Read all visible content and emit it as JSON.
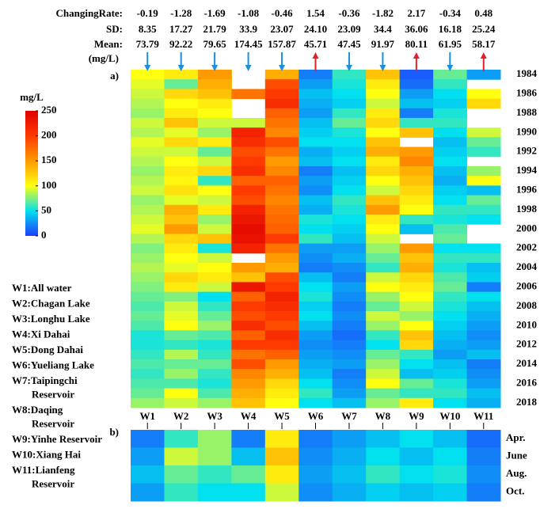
{
  "stats": {
    "rows": [
      {
        "label": "ChangingRate:",
        "values": [
          "-0.19",
          "-1.28",
          "-1.69",
          "-1.08",
          "-0.46",
          "1.54",
          "-0.36",
          "-1.82",
          "2.17",
          "-0.34",
          "0.48"
        ]
      },
      {
        "label": "SD:",
        "values": [
          "8.35",
          "17.27",
          "21.79",
          "33.9",
          "23.07",
          "24.10",
          "23.09",
          "34.4",
          "36.06",
          "16.18",
          "25.24"
        ]
      },
      {
        "label": "Mean:",
        "values": [
          "73.79",
          "92.22",
          "79.65",
          "174.45",
          "157.87",
          "45.71",
          "47.45",
          "91.97",
          "80.11",
          "61.95",
          "58.17"
        ]
      }
    ],
    "unit": "(mg/L)"
  },
  "colorbar": {
    "title": "mg/L",
    "lim": [
      0,
      250
    ],
    "ticks": [
      0,
      50,
      100,
      150,
      200,
      250
    ],
    "colormap": [
      "#1f3cff",
      "#00e0ee",
      "#ffff10",
      "#ff9a00",
      "#ff3a00",
      "#e00000"
    ]
  },
  "legend": [
    [
      "W1:All water"
    ],
    [
      "W2:Chagan Lake"
    ],
    [
      "W3:Longhu Lake"
    ],
    [
      "W4:Xi Dahai"
    ],
    [
      "W5:Dong Dahai"
    ],
    [
      "W6:Yueliang Lake"
    ],
    [
      "W7:Taipingchi",
      "Reservoir"
    ],
    [
      "W8:Daqing",
      "Reservoir"
    ],
    [
      "W9:Yinhe Reservoir"
    ],
    [
      "W10:Xiang Hai"
    ],
    [
      "W11:Lianfeng",
      "Reservoir"
    ]
  ],
  "chart_data": [
    {
      "type": "heatmap",
      "panel_label": "a)",
      "rows": [
        "1984",
        null,
        "1986",
        null,
        "1988",
        null,
        "1990",
        null,
        "1992",
        null,
        "1994",
        null,
        "1996",
        null,
        "1998",
        null,
        "2000",
        null,
        "2002",
        null,
        "2004",
        null,
        "2006",
        null,
        "2008",
        null,
        "2010",
        null,
        "2012",
        null,
        "2014",
        null,
        "2016",
        null,
        "2018"
      ],
      "series": [
        {
          "name": "W1",
          "values": [
            100,
            95,
            90,
            85,
            80,
            90,
            85,
            95,
            90,
            85,
            80,
            85,
            90,
            80,
            85,
            90,
            95,
            85,
            75,
            80,
            85,
            80,
            75,
            70,
            65,
            70,
            65,
            55,
            55,
            60,
            65,
            60,
            65,
            70,
            80
          ]
        },
        {
          "name": "W2",
          "values": [
            110,
            70,
            120,
            100,
            110,
            130,
            95,
            120,
            90,
            100,
            110,
            105,
            115,
            95,
            140,
            130,
            150,
            120,
            110,
            100,
            95,
            120,
            110,
            75,
            90,
            95,
            100,
            70,
            60,
            85,
            70,
            80,
            65,
            100,
            90
          ]
        },
        {
          "name": "W3",
          "values": [
            150,
            140,
            130,
            110,
            100,
            90,
            80,
            110,
            70,
            90,
            120,
            60,
            100,
            90,
            110,
            80,
            90,
            130,
            55,
            90,
            100,
            110,
            90,
            50,
            60,
            70,
            80,
            65,
            55,
            60,
            70,
            60,
            55,
            65,
            80
          ]
        },
        {
          "name": "W4",
          "values": [
            null,
            null,
            170,
            null,
            null,
            90,
            220,
            210,
            190,
            200,
            210,
            180,
            200,
            190,
            220,
            230,
            240,
            235,
            220,
            null,
            150,
            130,
            230,
            180,
            200,
            190,
            210,
            180,
            200,
            170,
            190,
            160,
            150,
            140,
            130
          ]
        },
        {
          "name": "W5",
          "values": [
            140,
            190,
            200,
            210,
            180,
            170,
            160,
            190,
            170,
            150,
            160,
            180,
            170,
            160,
            170,
            175,
            180,
            200,
            170,
            150,
            140,
            190,
            200,
            220,
            210,
            200,
            190,
            210,
            200,
            180,
            150,
            140,
            120,
            110,
            100
          ]
        },
        {
          "name": "W6",
          "values": [
            20,
            30,
            40,
            35,
            30,
            40,
            45,
            50,
            35,
            40,
            20,
            30,
            25,
            40,
            35,
            55,
            50,
            60,
            30,
            25,
            20,
            40,
            50,
            55,
            45,
            50,
            40,
            30,
            25,
            30,
            35,
            40,
            50,
            60,
            50
          ]
        },
        {
          "name": "W7",
          "values": [
            60,
            55,
            50,
            45,
            60,
            70,
            55,
            50,
            45,
            50,
            40,
            45,
            50,
            60,
            55,
            50,
            45,
            40,
            30,
            35,
            25,
            20,
            30,
            25,
            20,
            25,
            20,
            15,
            20,
            25,
            30,
            20,
            25,
            30,
            40
          ]
        },
        {
          "name": "W8",
          "values": [
            130,
            110,
            100,
            90,
            110,
            120,
            100,
            130,
            140,
            110,
            120,
            100,
            90,
            130,
            150,
            110,
            100,
            90,
            80,
            70,
            60,
            90,
            100,
            80,
            70,
            90,
            80,
            60,
            50,
            70,
            80,
            90,
            100,
            70,
            80
          ]
        },
        {
          "name": "W9",
          "values": [
            10,
            15,
            30,
            40,
            20,
            60,
            130,
            null,
            150,
            160,
            140,
            130,
            120,
            110,
            100,
            60,
            40,
            null,
            150,
            130,
            140,
            120,
            110,
            100,
            90,
            80,
            100,
            130,
            120,
            60,
            50,
            40,
            70,
            60,
            110
          ]
        },
        {
          "name": "W10",
          "values": [
            70,
            60,
            50,
            45,
            55,
            60,
            50,
            40,
            45,
            50,
            40,
            35,
            45,
            50,
            60,
            55,
            65,
            70,
            50,
            60,
            55,
            65,
            70,
            60,
            55,
            50,
            45,
            40,
            35,
            30,
            40,
            45,
            55,
            60,
            50
          ]
        },
        {
          "name": "W11",
          "values": [
            30,
            null,
            100,
            120,
            null,
            null,
            90,
            70,
            60,
            null,
            80,
            100,
            40,
            70,
            60,
            50,
            null,
            null,
            50,
            60,
            40,
            45,
            20,
            50,
            40,
            35,
            30,
            25,
            30,
            40,
            20,
            25,
            30,
            40,
            35
          ]
        }
      ]
    },
    {
      "type": "heatmap",
      "panel_label": "b)",
      "rows": [
        "Apr.",
        "June",
        "Aug.",
        "Oct."
      ],
      "series": [
        {
          "name": "W1",
          "values": [
            20,
            30,
            40,
            30
          ]
        },
        {
          "name": "W2",
          "values": [
            60,
            90,
            70,
            60
          ]
        },
        {
          "name": "W3",
          "values": [
            80,
            80,
            60,
            50
          ]
        },
        {
          "name": "W4",
          "values": [
            20,
            40,
            70,
            50
          ]
        },
        {
          "name": "W5",
          "values": [
            110,
            130,
            110,
            90
          ]
        },
        {
          "name": "W6",
          "values": [
            20,
            25,
            30,
            25
          ]
        },
        {
          "name": "W7",
          "values": [
            30,
            35,
            40,
            35
          ]
        },
        {
          "name": "W8",
          "values": [
            40,
            50,
            60,
            45
          ]
        },
        {
          "name": "W9",
          "values": [
            50,
            40,
            50,
            40
          ]
        },
        {
          "name": "W10",
          "values": [
            40,
            50,
            55,
            45
          ]
        },
        {
          "name": "W11",
          "values": [
            15,
            20,
            25,
            20
          ]
        }
      ]
    }
  ]
}
